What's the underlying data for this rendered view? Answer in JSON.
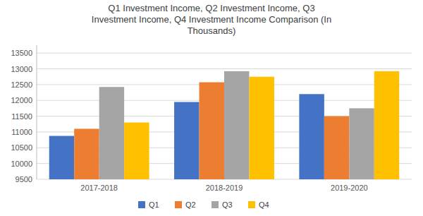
{
  "chart_data": {
    "type": "bar",
    "title": "Q1 Investment Income, Q2 Investment Income, Q3\nInvestment Income, Q4 Investment Income Comparison (In\nThousands)",
    "categories": [
      "2017-2018",
      "2018-2019",
      "2019-2020"
    ],
    "series": [
      {
        "name": "Q1",
        "color": "#4472C4",
        "values": [
          10875,
          11950,
          12200
        ]
      },
      {
        "name": "Q2",
        "color": "#ED7D31",
        "values": [
          11100,
          12575,
          11500
        ]
      },
      {
        "name": "Q3",
        "color": "#A5A5A5",
        "values": [
          12425,
          12925,
          11750
        ]
      },
      {
        "name": "Q4",
        "color": "#FFC000",
        "values": [
          11300,
          12750,
          12925
        ]
      }
    ],
    "ylim": [
      9500,
      13750
    ],
    "yticks": [
      9500,
      10000,
      10500,
      11000,
      11500,
      12000,
      12500,
      13000,
      13500
    ],
    "grid": true,
    "legend": "bottom"
  }
}
